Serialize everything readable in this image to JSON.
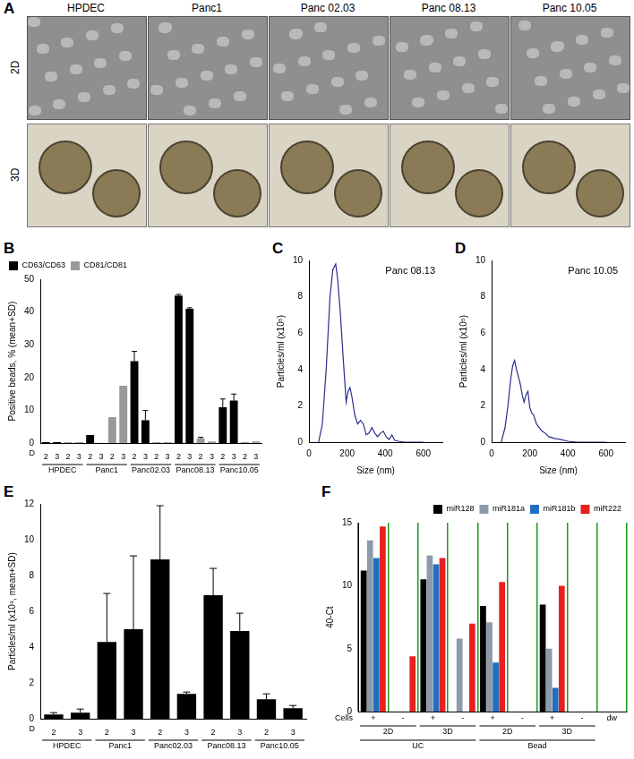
{
  "panel_a": {
    "panel_label": "A",
    "columns": [
      "HPDEC",
      "Panc1",
      "Panc 02.03",
      "Panc 08.13",
      "Panc 10.05"
    ],
    "rows": [
      "2D",
      "3D"
    ]
  },
  "chart_data": [
    {
      "panel_label": "B",
      "type": "bar",
      "ylabel": "Positive beads, % (mean+SD)",
      "xlabel": "D",
      "categories": [
        "2",
        "3",
        "2",
        "3",
        "2",
        "3",
        "2",
        "3",
        "2",
        "3",
        "2",
        "3",
        "2",
        "3",
        "2",
        "3",
        "2",
        "3",
        "2",
        "3"
      ],
      "groups": [
        [
          {
            "label": "HPDEC",
            "span": 4
          },
          {
            "label": "Panc1",
            "span": 4
          },
          {
            "label": "Panc02.03",
            "span": 4
          },
          {
            "label": "Panc08.13",
            "span": 4
          },
          {
            "label": "Panc10.05",
            "span": 4
          }
        ]
      ],
      "series": [
        {
          "name": "CD63/CD63",
          "color": "#000000",
          "values": [
            0.3,
            0.3,
            null,
            null,
            2.5,
            0,
            null,
            null,
            25,
            7,
            null,
            null,
            45,
            41,
            null,
            null,
            11,
            13,
            null,
            null
          ],
          "errors": [
            0,
            0,
            null,
            null,
            0,
            0,
            null,
            null,
            3,
            3,
            null,
            null,
            0.4,
            0.3,
            null,
            null,
            2.5,
            2,
            null,
            null
          ]
        },
        {
          "name": "CD81/CD81",
          "color": "#999999",
          "values": [
            null,
            null,
            0.3,
            0.3,
            null,
            null,
            8,
            17.5,
            null,
            null,
            0.3,
            0.3,
            null,
            null,
            1.5,
            0.5,
            null,
            null,
            0.3,
            0.5
          ],
          "errors": [
            null,
            null,
            0,
            0,
            null,
            null,
            0,
            0,
            null,
            null,
            0,
            0,
            null,
            null,
            0.3,
            0,
            null,
            null,
            0,
            0
          ]
        }
      ],
      "ylim": [
        0,
        50
      ],
      "yticks": [
        0,
        10,
        20,
        30,
        40,
        50
      ],
      "grid": false,
      "legend": "top left"
    },
    {
      "panel_label": "C",
      "type": "line",
      "annotation": "Panc 08.13",
      "xlabel": "Size (nm)",
      "ylabel": "Particles/ml (x10⁵)",
      "x": [
        50,
        70,
        90,
        110,
        125,
        140,
        150,
        165,
        180,
        195,
        205,
        215,
        225,
        240,
        255,
        270,
        285,
        300,
        315,
        330,
        345,
        360,
        375,
        390,
        405,
        420,
        435,
        450,
        470,
        500,
        550,
        600
      ],
      "values": [
        0,
        1,
        4,
        8,
        9.5,
        9.8,
        9,
        7,
        4.5,
        2.2,
        2.8,
        3.0,
        2.5,
        1.5,
        1.0,
        1.2,
        1.0,
        0.4,
        0.5,
        0.8,
        0.5,
        0.3,
        0.5,
        0.6,
        0.3,
        0.15,
        0.4,
        0.1,
        0.05,
        0,
        0,
        0
      ],
      "color": "#2b2f8f",
      "xlim": [
        0,
        700
      ],
      "xticks": [
        0,
        200,
        400,
        600
      ],
      "ylim": [
        0,
        10
      ],
      "yticks": [
        0,
        2,
        4,
        6,
        8,
        10
      ],
      "grid": false
    },
    {
      "panel_label": "D",
      "type": "line",
      "annotation": "Panc 10.05",
      "xlabel": "Size (nm)",
      "ylabel": "Particles/ml (x10⁵)",
      "x": [
        50,
        70,
        85,
        100,
        110,
        120,
        130,
        140,
        150,
        160,
        170,
        180,
        190,
        200,
        210,
        220,
        235,
        250,
        265,
        280,
        300,
        330,
        360,
        400,
        450,
        500,
        600
      ],
      "values": [
        0,
        0.8,
        2,
        3.5,
        4.2,
        4.5,
        4.0,
        3.6,
        3.2,
        2.6,
        2.2,
        2.6,
        2.8,
        1.9,
        1.6,
        1.5,
        1.0,
        0.8,
        0.6,
        0.5,
        0.3,
        0.2,
        0.15,
        0.05,
        0,
        0,
        0
      ],
      "color": "#2b2f8f",
      "xlim": [
        0,
        700
      ],
      "xticks": [
        0,
        200,
        400,
        600
      ],
      "ylim": [
        0,
        10
      ],
      "yticks": [
        0,
        2,
        4,
        6,
        8,
        10
      ],
      "grid": false
    },
    {
      "panel_label": "E",
      "type": "bar",
      "ylabel": "Particles/ml (x10⁹, mean+SD)",
      "xlabel": "D",
      "categories": [
        "2",
        "3",
        "2",
        "3",
        "2",
        "3",
        "2",
        "3",
        "2",
        "3"
      ],
      "groups": [
        [
          {
            "label": "HPDEC",
            "span": 2
          },
          {
            "label": "Panc1",
            "span": 2
          },
          {
            "label": "Panc02.03",
            "span": 2
          },
          {
            "label": "Panc08.13",
            "span": 2
          },
          {
            "label": "Panc10.05",
            "span": 2
          }
        ]
      ],
      "values": [
        0.25,
        0.35,
        4.3,
        5.0,
        8.9,
        1.4,
        6.9,
        4.9,
        1.1,
        0.6
      ],
      "errors": [
        0.1,
        0.2,
        2.7,
        4.1,
        3.0,
        0.1,
        1.5,
        1.0,
        0.3,
        0.15
      ],
      "color": "#000000",
      "ylim": [
        0,
        12
      ],
      "yticks": [
        0,
        2,
        4,
        6,
        8,
        10,
        12
      ],
      "grid": false
    },
    {
      "panel_label": "F",
      "type": "bar",
      "ylabel": "40-Ct",
      "xlabel": "Cells",
      "categories": [
        "+",
        "-",
        "+",
        "-",
        "+",
        "-",
        "+",
        "-",
        "dw"
      ],
      "groups": [
        [
          {
            "label": "2D",
            "span": 2
          },
          {
            "label": "3D",
            "span": 2
          },
          {
            "label": "2D",
            "span": 2
          },
          {
            "label": "3D",
            "span": 2
          }
        ],
        [
          {
            "label": "UC",
            "span": 4
          },
          {
            "label": "Bead",
            "span": 4
          }
        ]
      ],
      "series": [
        {
          "name": "miR128",
          "color": "#000000",
          "values": [
            11.2,
            0,
            10.5,
            0,
            8.4,
            0,
            8.5,
            0,
            0
          ]
        },
        {
          "name": "miR181a",
          "color": "#8c9aaa",
          "values": [
            13.6,
            0,
            12.4,
            5.8,
            7.1,
            0,
            5.0,
            0,
            0
          ]
        },
        {
          "name": "miR181b",
          "color": "#1f6fc0",
          "values": [
            12.2,
            0,
            11.7,
            0,
            3.9,
            0,
            1.9,
            0,
            0
          ]
        },
        {
          "name": "miR222",
          "color": "#e8201e",
          "values": [
            14.7,
            4.4,
            12.2,
            7.0,
            10.3,
            0,
            10.0,
            0,
            0
          ]
        }
      ],
      "ylim": [
        0,
        15
      ],
      "yticks": [
        0,
        5,
        10,
        15
      ],
      "grid": false,
      "legend": "top right"
    }
  ]
}
